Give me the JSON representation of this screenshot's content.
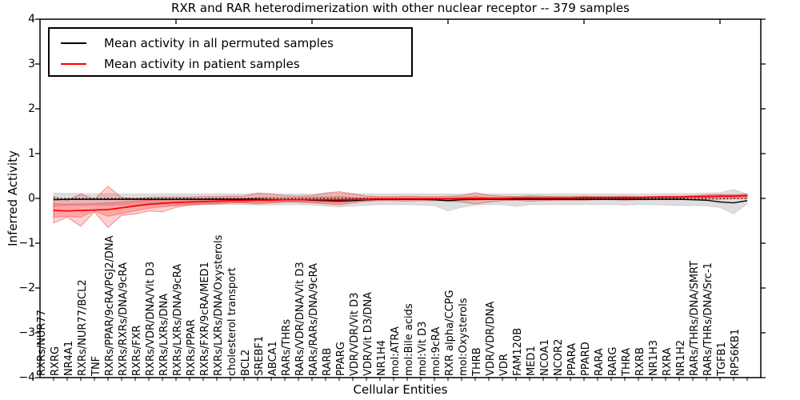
{
  "title": "RXR and RAR heterodimerization with other nuclear receptor -- 379 samples",
  "axes": {
    "xlabel": "Cellular Entities",
    "ylabel": "Inferred Activity",
    "ytick_labels": [
      "4",
      "3",
      "2",
      "1",
      "0",
      "−1",
      "−2",
      "−3",
      "−4"
    ]
  },
  "legend": {
    "items": [
      {
        "label": "Mean activity in all permuted samples",
        "color": "#000000"
      },
      {
        "label": "Mean activity in patient samples",
        "color": "#ff0000"
      }
    ]
  },
  "chart_data": {
    "type": "line",
    "title": "RXR and RAR heterodimerization with other nuclear receptor -- 379 samples",
    "xlabel": "Cellular Entities",
    "ylabel": "Inferred Activity",
    "ylim": [
      -4,
      4
    ],
    "yticks": [
      4,
      3,
      2,
      1,
      0,
      -1,
      -2,
      -3,
      -4
    ],
    "xticks_top": [
      10,
      20,
      30,
      40,
      50
    ],
    "zero_line": true,
    "legend_position": "upper left",
    "categories": [
      "RXRs/NUR77",
      "RXRG",
      "NR4A1",
      "RXRs/NUR77/BCL2",
      "TNF",
      "RXRs/PPAR/9cRA/PGJ2/DNA",
      "RXRs/RXRs/DNA/9cRA",
      "RXRs/FXR",
      "RXRs/VDR/DNA/Vit D3",
      "RXRs/LXRs/DNA",
      "RXRs/LXRs/DNA/9cRA",
      "RXRs/PPAR",
      "RXRs/FXR/9cRA/MED1",
      "RXRs/LXRs/DNA/Oxysterols",
      "cholesterol transport",
      "BCL2",
      "SREBF1",
      "ABCA1",
      "RARs/THRs",
      "RARs/VDR/DNA/Vit D3",
      "RARs/RARs/DNA/9cRA",
      "RARB",
      "PPARG",
      "VDR/VDR/Vit D3",
      "VDR/Vit D3/DNA",
      "NR1H4",
      "mol:ATRA",
      "mol:Bile acids",
      "mol:Vit D3",
      "mol:9cRA",
      "RXR alpha/CCPG",
      "mol:Oxysterols",
      "THRB",
      "VDR/VDR/DNA",
      "VDR",
      "FAM120B",
      "MED1",
      "NCOA1",
      "NCOR2",
      "PPARA",
      "PPARD",
      "RARA",
      "RARG",
      "THRA",
      "RXRB",
      "NR1H3",
      "RXRA",
      "NR1H2",
      "RARs/THRs/DNA/SMRT",
      "RARs/THRs/DNA/Src-1",
      "TGFB1",
      "RPS6KB1"
    ],
    "series": [
      {
        "name": "Mean activity in all permuted samples",
        "color": "#000000",
        "values": [
          -0.03,
          -0.02,
          -0.02,
          -0.02,
          -0.02,
          -0.02,
          -0.02,
          -0.02,
          -0.02,
          -0.02,
          -0.02,
          -0.02,
          -0.02,
          -0.02,
          -0.02,
          -0.02,
          -0.03,
          -0.03,
          -0.03,
          -0.04,
          -0.05,
          -0.06,
          -0.05,
          -0.03,
          -0.02,
          -0.02,
          -0.02,
          -0.02,
          -0.03,
          -0.05,
          -0.03,
          -0.02,
          -0.02,
          -0.02,
          -0.02,
          -0.02,
          -0.02,
          -0.02,
          -0.02,
          -0.02,
          -0.02,
          -0.02,
          -0.02,
          -0.02,
          -0.02,
          -0.02,
          -0.02,
          -0.03,
          -0.04,
          -0.08,
          -0.1,
          -0.05
        ]
      },
      {
        "name": "Mean activity in patient samples",
        "color": "#ff0000",
        "values": [
          -0.27,
          -0.28,
          -0.27,
          -0.26,
          -0.25,
          -0.21,
          -0.17,
          -0.13,
          -0.11,
          -0.09,
          -0.08,
          -0.07,
          -0.06,
          -0.05,
          -0.05,
          -0.04,
          -0.04,
          -0.03,
          -0.03,
          -0.03,
          -0.03,
          -0.03,
          -0.02,
          -0.02,
          -0.01,
          -0.01,
          -0.01,
          -0.01,
          -0.01,
          -0.01,
          0.0,
          0.0,
          0.0,
          0.0,
          0.01,
          0.01,
          0.01,
          0.01,
          0.01,
          0.02,
          0.02,
          0.02,
          0.02,
          0.02,
          0.03,
          0.03,
          0.03,
          0.04,
          0.04,
          0.05,
          0.05,
          0.06
        ]
      }
    ],
    "bands": [
      {
        "name": "permuted-samples-std-band",
        "fill": "rgba(0,0,0,0.13)",
        "stroke": "rgba(0,0,0,0.10)",
        "upper": [
          0.12,
          0.11,
          0.11,
          0.1,
          0.11,
          0.1,
          0.1,
          0.1,
          0.1,
          0.1,
          0.1,
          0.1,
          0.1,
          0.1,
          0.1,
          0.11,
          0.1,
          0.1,
          0.1,
          0.1,
          0.11,
          0.12,
          0.11,
          0.1,
          0.1,
          0.1,
          0.1,
          0.1,
          0.1,
          0.1,
          0.1,
          0.1,
          0.1,
          0.1,
          0.1,
          0.1,
          0.1,
          0.1,
          0.1,
          0.1,
          0.1,
          0.1,
          0.1,
          0.1,
          0.1,
          0.11,
          0.11,
          0.11,
          0.12,
          0.13,
          0.2,
          0.1
        ],
        "lower": [
          -0.18,
          -0.16,
          -0.16,
          -0.15,
          -0.16,
          -0.15,
          -0.15,
          -0.15,
          -0.15,
          -0.15,
          -0.15,
          -0.14,
          -0.14,
          -0.14,
          -0.14,
          -0.15,
          -0.15,
          -0.14,
          -0.14,
          -0.15,
          -0.17,
          -0.19,
          -0.17,
          -0.15,
          -0.14,
          -0.14,
          -0.14,
          -0.15,
          -0.16,
          -0.28,
          -0.2,
          -0.15,
          -0.14,
          -0.14,
          -0.18,
          -0.14,
          -0.14,
          -0.14,
          -0.14,
          -0.14,
          -0.14,
          -0.14,
          -0.15,
          -0.14,
          -0.14,
          -0.15,
          -0.16,
          -0.16,
          -0.17,
          -0.2,
          -0.35,
          -0.12
        ]
      },
      {
        "name": "patient-samples-outer-band",
        "fill": "rgba(255,40,40,0.22)",
        "stroke": "rgba(220,30,30,0.45)",
        "upper": [
          0.04,
          -0.05,
          0.1,
          -0.02,
          0.27,
          0.02,
          0.0,
          0.02,
          0.03,
          0.03,
          0.03,
          0.04,
          0.04,
          0.05,
          0.05,
          0.12,
          0.1,
          0.06,
          0.05,
          0.06,
          0.12,
          0.15,
          0.1,
          0.05,
          0.04,
          0.04,
          0.05,
          0.04,
          0.04,
          0.05,
          0.06,
          0.13,
          0.07,
          0.05,
          0.04,
          0.06,
          0.05,
          0.04,
          0.04,
          0.05,
          0.04,
          0.04,
          0.05,
          0.04,
          0.04,
          0.05,
          0.05,
          0.06,
          0.08,
          0.09,
          0.08,
          0.1
        ],
        "lower": [
          -0.55,
          -0.42,
          -0.62,
          -0.3,
          -0.65,
          -0.38,
          -0.35,
          -0.28,
          -0.3,
          -0.2,
          -0.15,
          -0.13,
          -0.12,
          -0.1,
          -0.1,
          -0.12,
          -0.1,
          -0.08,
          -0.08,
          -0.1,
          -0.12,
          -0.14,
          -0.1,
          -0.06,
          -0.05,
          -0.05,
          -0.06,
          -0.05,
          -0.05,
          -0.06,
          -0.08,
          -0.12,
          -0.08,
          -0.05,
          -0.04,
          -0.06,
          -0.05,
          -0.04,
          -0.04,
          -0.04,
          -0.03,
          -0.03,
          -0.04,
          -0.03,
          -0.03,
          -0.02,
          -0.03,
          -0.02,
          -0.02,
          -0.02,
          -0.01,
          0.0
        ]
      },
      {
        "name": "patient-samples-inner-band",
        "fill": "rgba(255,40,40,0.25)",
        "stroke": "rgba(220,30,30,0.35)",
        "upper": [
          -0.12,
          -0.13,
          -0.12,
          -0.12,
          -0.1,
          -0.08,
          -0.06,
          -0.04,
          -0.03,
          -0.02,
          -0.01,
          -0.01,
          0.0,
          0.0,
          0.0,
          0.02,
          0.02,
          0.01,
          0.01,
          0.02,
          0.03,
          0.04,
          0.02,
          0.01,
          0.01,
          0.01,
          0.01,
          0.01,
          0.01,
          0.01,
          0.02,
          0.04,
          0.02,
          0.02,
          0.02,
          0.03,
          0.02,
          0.02,
          0.02,
          0.03,
          0.03,
          0.03,
          0.03,
          0.03,
          0.04,
          0.04,
          0.04,
          0.05,
          0.06,
          0.07,
          0.07,
          0.08
        ],
        "lower": [
          -0.42,
          -0.4,
          -0.42,
          -0.28,
          -0.4,
          -0.34,
          -0.28,
          -0.22,
          -0.19,
          -0.16,
          -0.13,
          -0.11,
          -0.1,
          -0.09,
          -0.09,
          -0.09,
          -0.08,
          -0.07,
          -0.07,
          -0.08,
          -0.09,
          -0.1,
          -0.06,
          -0.05,
          -0.03,
          -0.03,
          -0.03,
          -0.03,
          -0.03,
          -0.03,
          -0.02,
          -0.04,
          -0.02,
          -0.02,
          0.0,
          -0.01,
          -0.01,
          -0.01,
          -0.01,
          0.0,
          0.0,
          0.0,
          0.0,
          0.0,
          0.01,
          0.01,
          0.01,
          0.02,
          0.02,
          0.03,
          0.03,
          0.04
        ]
      }
    ]
  }
}
